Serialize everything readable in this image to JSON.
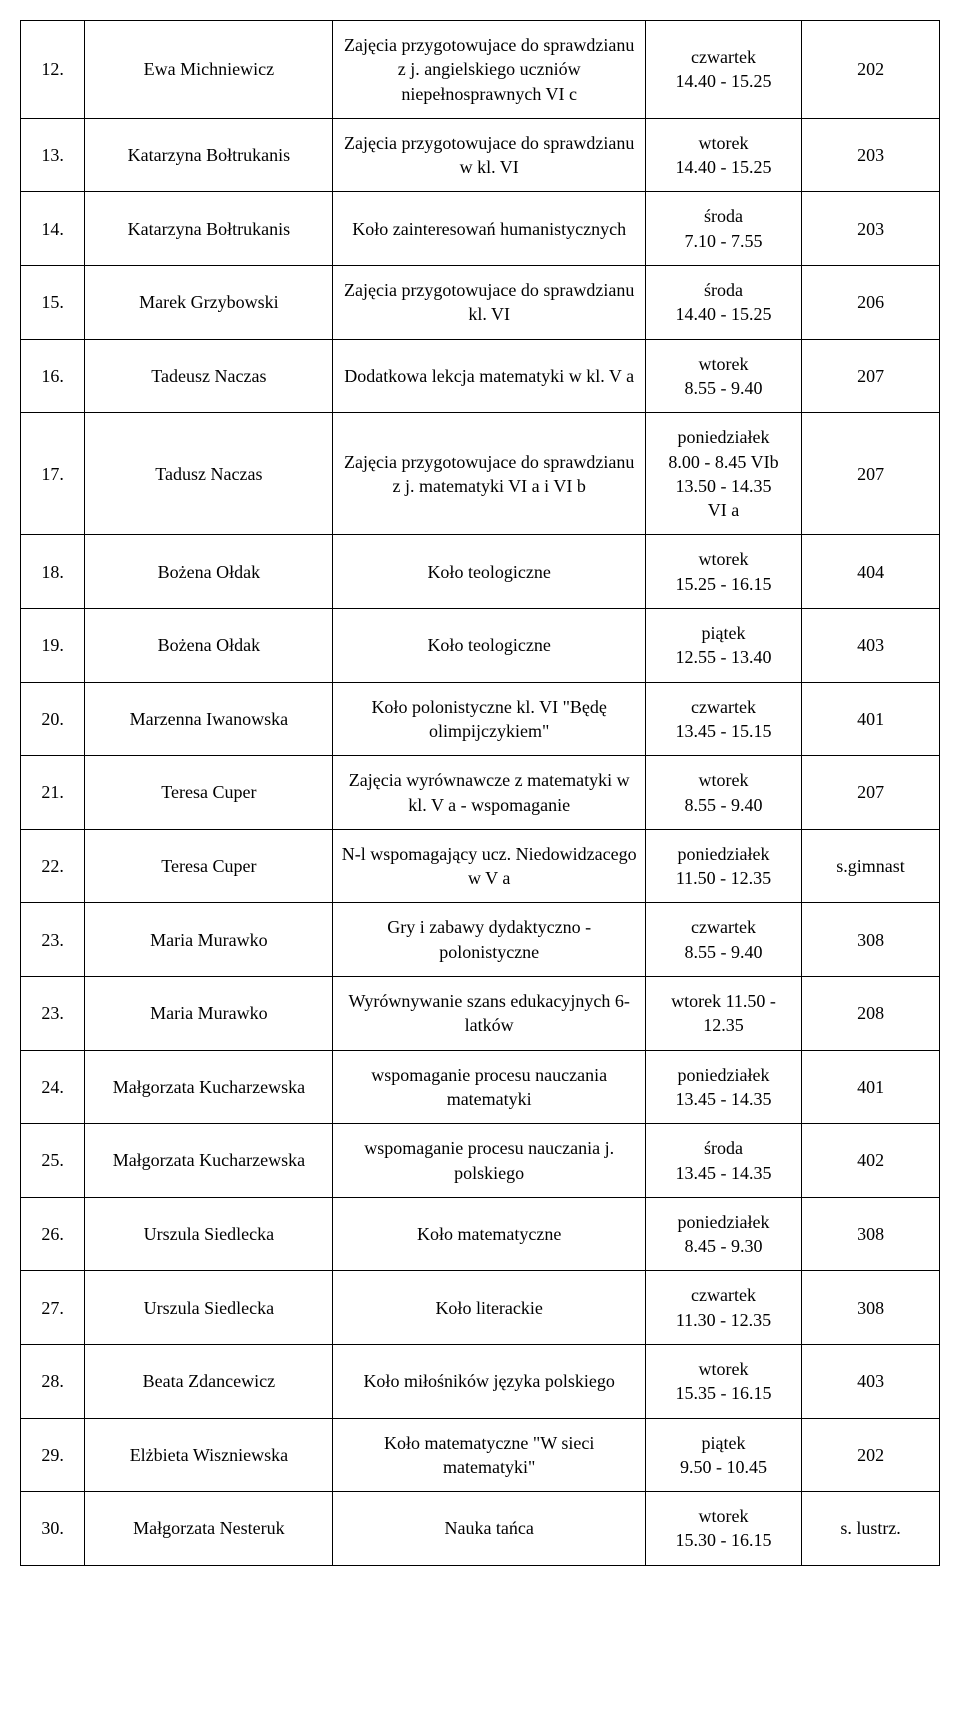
{
  "table": {
    "columns": [
      "num",
      "name",
      "activity",
      "time",
      "room"
    ],
    "col_widths_pct": [
      7,
      27,
      34,
      17,
      15
    ],
    "font_family": "Times New Roman",
    "font_size_pt": 14,
    "border_color": "#000000",
    "background_color": "#ffffff",
    "text_color": "#000000",
    "rows": [
      {
        "num": "12.",
        "name": "Ewa Michniewicz",
        "activity": "Zajęcia przygotowujace do sprawdzianu z j. angielskiego uczniów niepełnosprawnych VI c",
        "time": "czwartek\n14.40 - 15.25",
        "room": "202"
      },
      {
        "num": "13.",
        "name": "Katarzyna Bołtrukanis",
        "activity": "Zajęcia przygotowujace do sprawdzianu w kl. VI",
        "time": "wtorek\n14.40 - 15.25",
        "room": "203"
      },
      {
        "num": "14.",
        "name": "Katarzyna Bołtrukanis",
        "activity": "Koło zainteresowań humanistycznych",
        "time": "środa\n7.10 - 7.55",
        "room": "203"
      },
      {
        "num": "15.",
        "name": "Marek Grzybowski",
        "activity": "Zajęcia przygotowujace do sprawdzianu kl. VI",
        "time": "środa\n14.40 - 15.25",
        "room": "206"
      },
      {
        "num": "16.",
        "name": "Tadeusz Naczas",
        "activity": "Dodatkowa lekcja matematyki w kl. V a",
        "time": "wtorek\n8.55 - 9.40",
        "room": "207"
      },
      {
        "num": "17.",
        "name": "Tadusz Naczas",
        "activity": "Zajęcia przygotowujace do sprawdzianu z j. matematyki VI a i VI b",
        "time": "poniedziałek\n8.00 - 8.45 VIb\n13.50 - 14.35\nVI a",
        "room": "207"
      },
      {
        "num": "18.",
        "name": "Bożena Ołdak",
        "activity": "Koło teologiczne",
        "time": "wtorek\n15.25 - 16.15",
        "room": "404"
      },
      {
        "num": "19.",
        "name": "Bożena Ołdak",
        "activity": "Koło teologiczne",
        "time": "piątek\n12.55 - 13.40",
        "room": "403"
      },
      {
        "num": "20.",
        "name": "Marzenna Iwanowska",
        "activity": "Koło polonistyczne kl. VI \"Będę olimpijczykiem\"",
        "time": "czwartek\n13.45 - 15.15",
        "room": "401"
      },
      {
        "num": "21.",
        "name": "Teresa Cuper",
        "activity": "Zajęcia wyrównawcze z matematyki w kl. V a - wspomaganie",
        "time": "wtorek\n8.55 - 9.40",
        "room": "207"
      },
      {
        "num": "22.",
        "name": "Teresa Cuper",
        "activity": "N-l wspomagający ucz. Niedowidzacego w V a",
        "time": "poniedziałek\n11.50 - 12.35",
        "room": "s.gimnast"
      },
      {
        "num": "23.",
        "name": "Maria Murawko",
        "activity": "Gry i zabawy dydaktyczno - polonistyczne",
        "time": "czwartek\n8.55 - 9.40",
        "room": "308"
      },
      {
        "num": "23.",
        "name": "Maria Murawko",
        "activity": "Wyrównywanie szans edukacyjnych 6-latków",
        "time": "wtorek 11.50 - 12.35",
        "room": "208"
      },
      {
        "num": "24.",
        "name": "Małgorzata Kucharzewska",
        "activity": "wspomaganie procesu nauczania matematyki",
        "time": "poniedziałek\n13.45 - 14.35",
        "room": "401"
      },
      {
        "num": "25.",
        "name": "Małgorzata Kucharzewska",
        "activity": "wspomaganie procesu nauczania j. polskiego",
        "time": "środa\n13.45 - 14.35",
        "room": "402"
      },
      {
        "num": "26.",
        "name": "Urszula Siedlecka",
        "activity": "Koło matematyczne",
        "time": "poniedziałek\n8.45 - 9.30",
        "room": "308"
      },
      {
        "num": "27.",
        "name": "Urszula Siedlecka",
        "activity": "Koło literackie",
        "time": "czwartek\n11.30 - 12.35",
        "room": "308"
      },
      {
        "num": "28.",
        "name": "Beata Zdancewicz",
        "activity": "Koło miłośników języka polskiego",
        "time": "wtorek\n15.35 - 16.15",
        "room": "403"
      },
      {
        "num": "29.",
        "name": "Elżbieta Wiszniewska",
        "activity": "Koło matematyczne \"W sieci matematyki\"",
        "time": "piątek\n9.50 - 10.45",
        "room": "202"
      },
      {
        "num": "30.",
        "name": "Małgorzata Nesteruk",
        "activity": "Nauka tańca",
        "time": "wtorek\n15.30 - 16.15",
        "room": "s. lustrz."
      }
    ]
  }
}
